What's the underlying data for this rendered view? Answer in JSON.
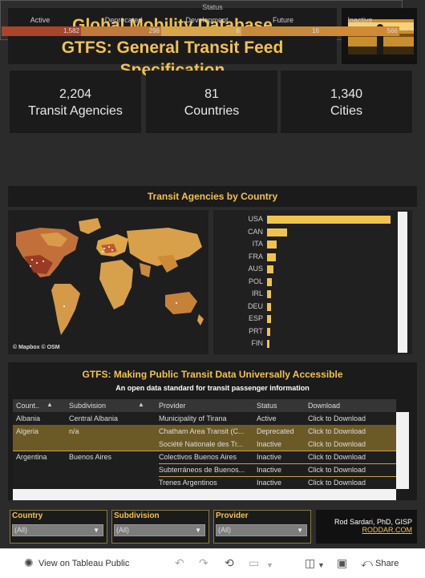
{
  "header": {
    "title_line1": "Global Mobility Database",
    "title_line2": "GTFS: General Transit Feed Specification"
  },
  "kpis": [
    {
      "value": "2,204",
      "label": "Transit Agencies"
    },
    {
      "value": "81",
      "label": "Countries"
    },
    {
      "value": "1,340",
      "label": "Cities"
    }
  ],
  "status": {
    "title": "Status",
    "segments": [
      {
        "label": "Active",
        "value": "1,582",
        "color": "#a8452a"
      },
      {
        "label": "Deprecated",
        "value": "298",
        "color": "#c17a3c"
      },
      {
        "label": "Development",
        "value": "6",
        "color": "#d8a54a"
      },
      {
        "label": "Future",
        "value": "16",
        "color": "#c8893b"
      },
      {
        "label": "Inactive",
        "value": "566",
        "color": "#cf8a36"
      }
    ]
  },
  "agencies_section": {
    "title": "Transit Agencies by Country"
  },
  "map": {
    "attribution": "© Mapbox  © OSM"
  },
  "country_bars": {
    "items": [
      {
        "code": "USA",
        "fraction": 1.0
      },
      {
        "code": "CAN",
        "fraction": 0.16
      },
      {
        "code": "ITA",
        "fraction": 0.08
      },
      {
        "code": "FRA",
        "fraction": 0.07
      },
      {
        "code": "AUS",
        "fraction": 0.05
      },
      {
        "code": "POL",
        "fraction": 0.04
      },
      {
        "code": "IRL",
        "fraction": 0.035
      },
      {
        "code": "DEU",
        "fraction": 0.03
      },
      {
        "code": "ESP",
        "fraction": 0.03
      },
      {
        "code": "PRT",
        "fraction": 0.025
      },
      {
        "code": "FIN",
        "fraction": 0.02
      }
    ]
  },
  "gtfs": {
    "title": "GTFS: Making Public Transit Data Universally Accessible",
    "subtitle": "An open data standard for transit passenger information"
  },
  "table": {
    "columns": [
      "Count..",
      "Subdivision",
      "Provider",
      "Status",
      "Download"
    ],
    "rows": [
      {
        "country": "Albania",
        "subdivision": "Central Albania",
        "provider": "Municipality of Tirana",
        "status": "Active",
        "download": "Click to Download",
        "selected": false
      },
      {
        "country": "Algeria",
        "subdivision": "n/a",
        "provider": "Chatham Area Transit (C...",
        "status": "Deprecated",
        "download": "Click to Download",
        "selected": true
      },
      {
        "country": "",
        "subdivision": "",
        "provider": "Société Nationale des Tr...",
        "status": "Inactive",
        "download": "Click to Download",
        "selected": true
      },
      {
        "country": "Argentina",
        "subdivision": "Buenos Aires",
        "provider": "Colectivos Buenos Aires",
        "status": "Inactive",
        "download": "Click to Download",
        "selected": false
      },
      {
        "country": "",
        "subdivision": "",
        "provider": "Subterráneos de Buenos...",
        "status": "Inactive",
        "download": "Click to Download",
        "selected": false
      },
      {
        "country": "",
        "subdivision": "",
        "provider": "Trenes Argentinos",
        "status": "Inactive",
        "download": "Click to Download",
        "selected": false
      }
    ]
  },
  "filters": [
    {
      "label": "Country",
      "value": "(All)"
    },
    {
      "label": "Subdivision",
      "value": "(All)"
    },
    {
      "label": "Provider",
      "value": "(All)"
    }
  ],
  "credit": {
    "name": "Rod Sardari, PhD, GISP",
    "url_text": "RODDAR.COM"
  },
  "toolbar": {
    "view_label": "View on Tableau Public",
    "share_label": "Share"
  }
}
